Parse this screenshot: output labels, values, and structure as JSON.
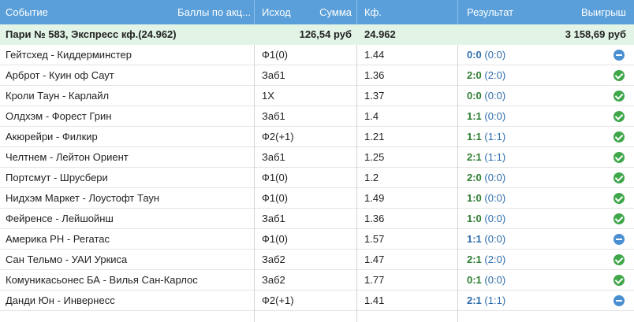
{
  "header": {
    "event": "Событие",
    "points": "Баллы по акц...",
    "outcome": "Исход",
    "amount": "Сумма",
    "coef": "Кф.",
    "result": "Результат",
    "winnings": "Выигрыш"
  },
  "summary": {
    "title": "Пари № 583, Экспресс кф.(24.962)",
    "amount": "126,54 руб",
    "coef": "24.962",
    "winnings": "3 158,69 руб"
  },
  "rows": [
    {
      "event": "Гейтсхед - Киддерминстер",
      "outcome": "Ф1(0)",
      "coef": "1.44",
      "score": "0:0",
      "half": "(0:0)",
      "status": "return-icon"
    },
    {
      "event": "Арброт - Куин оф Саут",
      "outcome": "Заб1",
      "coef": "1.36",
      "score": "2:0",
      "half": "(2:0)",
      "status": "check-icon"
    },
    {
      "event": "Кроли Таун - Карлайл",
      "outcome": "1X",
      "coef": "1.37",
      "score": "0:0",
      "half": "(0:0)",
      "status": "check-icon"
    },
    {
      "event": "Олдхэм - Форест Грин",
      "outcome": "Заб1",
      "coef": "1.4",
      "score": "1:1",
      "half": "(0:0)",
      "status": "check-icon"
    },
    {
      "event": "Акюрейри - Филкир",
      "outcome": "Ф2(+1)",
      "coef": "1.21",
      "score": "1:1",
      "half": "(1:1)",
      "status": "check-icon"
    },
    {
      "event": "Челтнем - Лейтон Ориент",
      "outcome": "Заб1",
      "coef": "1.25",
      "score": "2:1",
      "half": "(1:1)",
      "status": "check-icon"
    },
    {
      "event": "Портсмут - Шрусбери",
      "outcome": "Ф1(0)",
      "coef": "1.2",
      "score": "2:0",
      "half": "(0:0)",
      "status": "check-icon"
    },
    {
      "event": "Нидхэм Маркет - Лоустофт Таун",
      "outcome": "Ф1(0)",
      "coef": "1.49",
      "score": "1:0",
      "half": "(0:0)",
      "status": "check-icon"
    },
    {
      "event": "Фейренсе - Лейшойнш",
      "outcome": "Заб1",
      "coef": "1.36",
      "score": "1:0",
      "half": "(0:0)",
      "status": "check-icon"
    },
    {
      "event": "Америка РН - Регатас",
      "outcome": "Ф1(0)",
      "coef": "1.57",
      "score": "1:1",
      "half": "(0:0)",
      "status": "return-icon"
    },
    {
      "event": "Сан Тельмо - УАИ Уркиса",
      "outcome": "Заб2",
      "coef": "1.47",
      "score": "2:1",
      "half": "(2:0)",
      "status": "check-icon"
    },
    {
      "event": "Комуникасьонес БА - Вилья Сан-Карлос",
      "outcome": "Заб2",
      "coef": "1.77",
      "score": "0:1",
      "half": "(0:0)",
      "status": "check-icon"
    },
    {
      "event": "Данди Юн - Инвернесс",
      "outcome": "Ф2(+1)",
      "coef": "1.41",
      "score": "2:1",
      "half": "(1:1)",
      "status": "return-icon"
    }
  ],
  "colors": {
    "header_bg": "#5a9fd9",
    "summary_bg": "#e2f4e6",
    "win_color": "#3fa64a",
    "return_color": "#4a8fd1",
    "score_win": "#2e7d32",
    "score_return": "#2f6dab"
  }
}
